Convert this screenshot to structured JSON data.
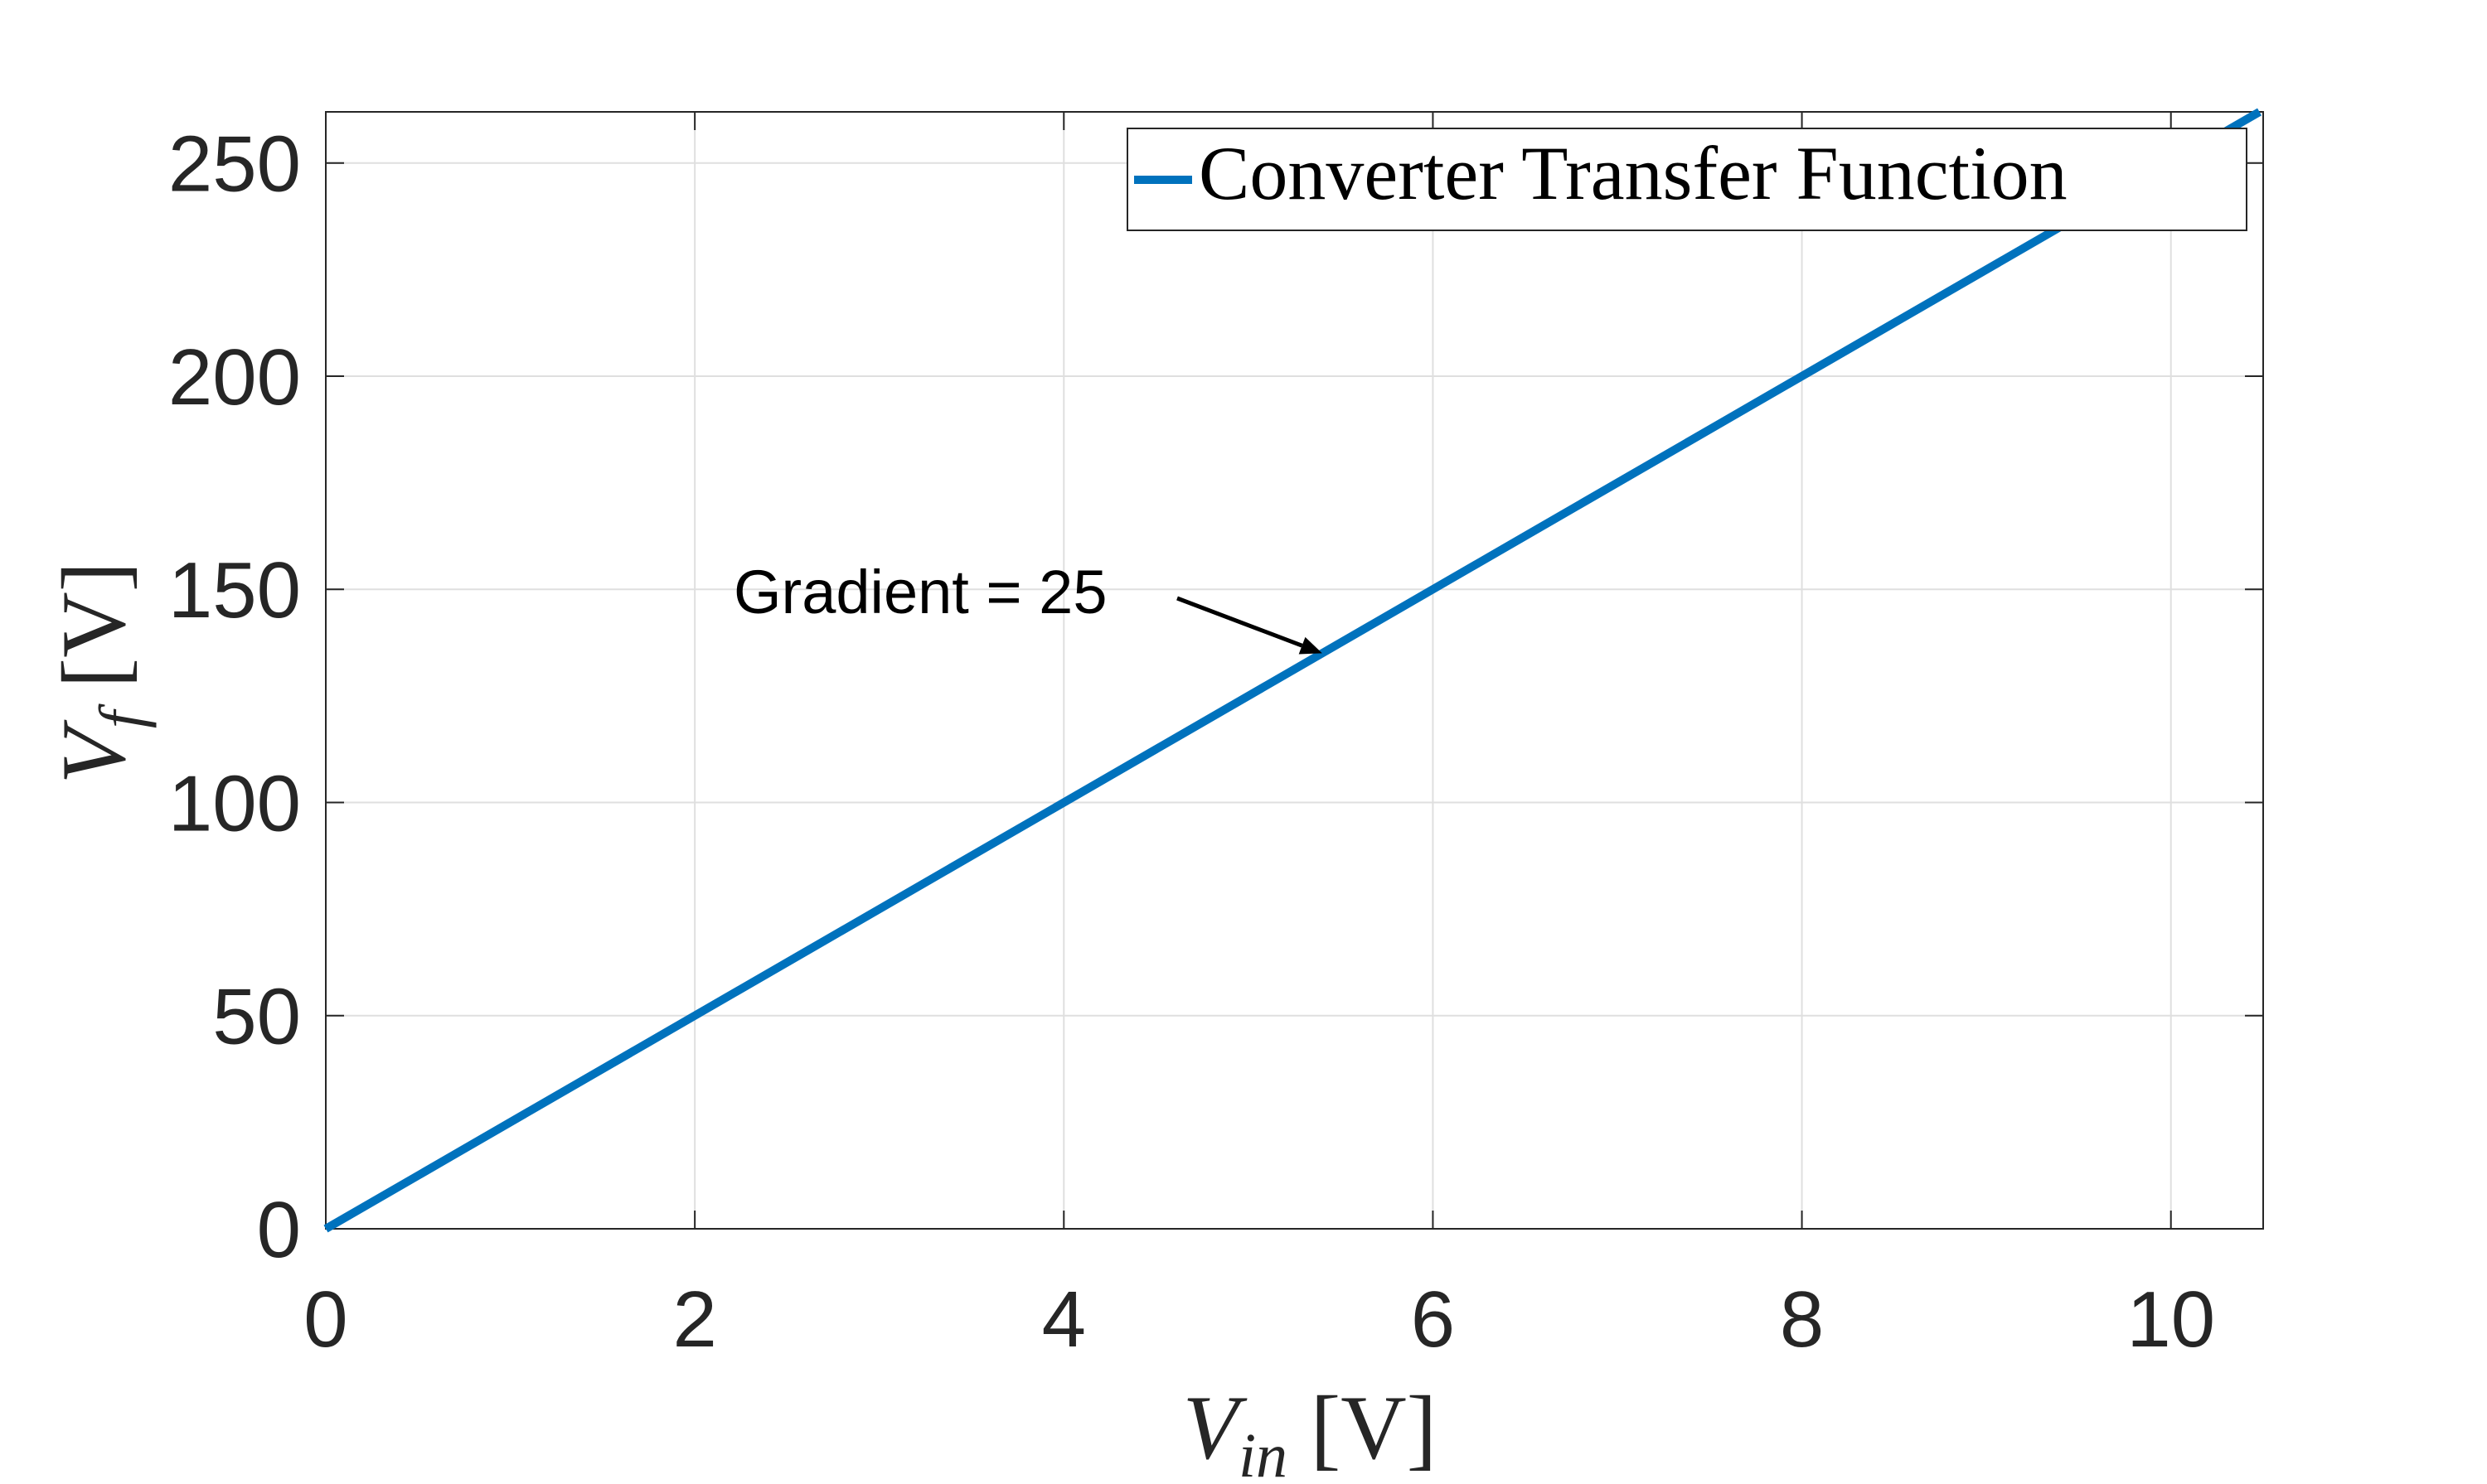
{
  "chart_data": {
    "type": "line",
    "x": [
      0,
      10.5
    ],
    "series": [
      {
        "name": "Converter Transfer Function",
        "color": "#0072BD",
        "x": [
          0,
          10.5
        ],
        "y": [
          0,
          262.5
        ]
      }
    ],
    "xlim": [
      0,
      10.5
    ],
    "ylim": [
      0,
      262
    ],
    "xticks": [
      0,
      2,
      4,
      6,
      8,
      10
    ],
    "yticks": [
      0,
      50,
      100,
      150,
      200,
      250
    ],
    "xtick_labels": [
      "0",
      "2",
      "4",
      "6",
      "8",
      "10"
    ],
    "ytick_labels": [
      "0",
      "50",
      "100",
      "150",
      "200",
      "250"
    ],
    "xlabel": {
      "main": "V",
      "sub": "in",
      "unit": " [V]"
    },
    "ylabel": {
      "main": "V",
      "sub": "f",
      "unit": " [V]"
    },
    "legend": {
      "position": "top-right",
      "entry": "Converter Transfer Function"
    },
    "annotation": {
      "text": "Gradient = 25",
      "target": {
        "x": 5.4,
        "y": 135
      }
    },
    "grid": true
  }
}
